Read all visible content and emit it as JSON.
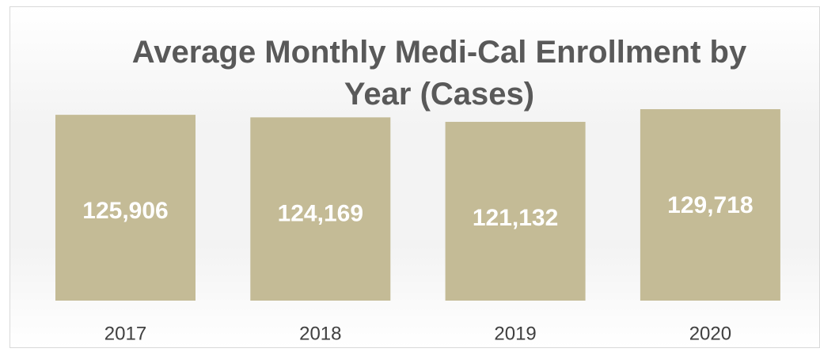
{
  "chart_data": {
    "type": "bar",
    "title": "Average Monthly Medi-Cal Enrollment by Year (Cases)",
    "categories": [
      "2017",
      "2018",
      "2019",
      "2020"
    ],
    "values": [
      125906,
      124169,
      121132,
      129718
    ],
    "value_labels": [
      "125,906",
      "124,169",
      "121,132",
      "129,718"
    ],
    "color": "#c4bb96"
  }
}
